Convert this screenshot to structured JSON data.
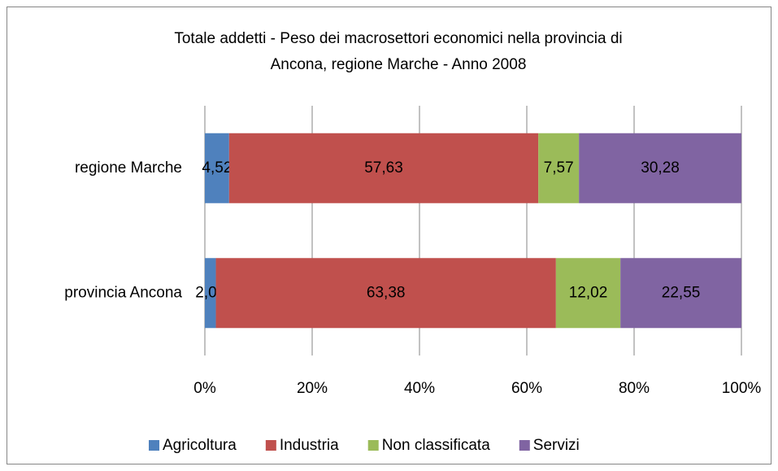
{
  "chart_data": {
    "type": "stacked-bar-horizontal",
    "title": [
      "Totale addetti - Peso dei macrosettori economici  nella provincia di",
      "Ancona, regione Marche - Anno 2008"
    ],
    "categories": [
      "regione Marche",
      "provincia Ancona"
    ],
    "series": [
      {
        "name": "Agricoltura",
        "color": "#4f81bd",
        "values": [
          4.52,
          2.05
        ],
        "value_labels": [
          "4,52",
          "2,05"
        ]
      },
      {
        "name": "Industria",
        "color": "#c0504d",
        "values": [
          57.63,
          63.38
        ],
        "value_labels": [
          "57,63",
          "63,38"
        ]
      },
      {
        "name": "Non classificata",
        "color": "#9bbb59",
        "values": [
          7.57,
          12.02
        ],
        "value_labels": [
          "7,57",
          "12,02"
        ]
      },
      {
        "name": "Servizi",
        "color": "#8064a2",
        "values": [
          30.28,
          22.55
        ],
        "value_labels": [
          "30,28",
          "22,55"
        ]
      }
    ],
    "xlim": [
      0,
      100
    ],
    "xticks": [
      {
        "value": 0,
        "label": "0%"
      },
      {
        "value": 20,
        "label": "20%"
      },
      {
        "value": 40,
        "label": "40%"
      },
      {
        "value": 60,
        "label": "60%"
      },
      {
        "value": 80,
        "label": "80%"
      },
      {
        "value": 100,
        "label": "100%"
      }
    ],
    "grid": true,
    "legend": "bottom"
  }
}
